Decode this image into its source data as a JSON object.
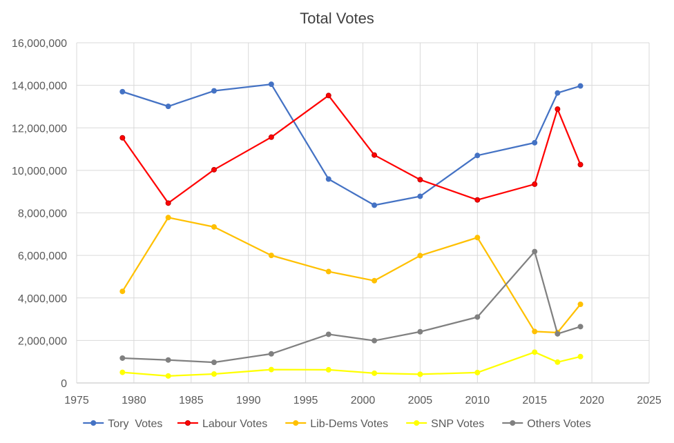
{
  "chart_data": {
    "type": "line",
    "title": "Total Votes",
    "xlabel": "",
    "ylabel": "",
    "xlim": [
      1975,
      2025
    ],
    "ylim": [
      0,
      16000000
    ],
    "x_ticks": [
      1975,
      1980,
      1985,
      1990,
      1995,
      2000,
      2005,
      2010,
      2015,
      2020,
      2025
    ],
    "y_ticks": [
      0,
      2000000,
      4000000,
      6000000,
      8000000,
      10000000,
      12000000,
      14000000,
      16000000
    ],
    "grid": true,
    "legend_position": "bottom",
    "x": [
      1979,
      1983,
      1987,
      1992,
      1997,
      2001,
      2005,
      2010,
      2015,
      2017,
      2019
    ],
    "series": [
      {
        "name": "Tory  Votes",
        "color": "#4472c4",
        "values": [
          13700000,
          13010000,
          13740000,
          14050000,
          9590000,
          8360000,
          8780000,
          10700000,
          11300000,
          13640000,
          13970000
        ]
      },
      {
        "name": "Labour Votes",
        "color": "#ff0000",
        "values": [
          11530000,
          8460000,
          10030000,
          11560000,
          13520000,
          10720000,
          9560000,
          8610000,
          9350000,
          12880000,
          10270000
        ]
      },
      {
        "name": "Lib-Dems Votes",
        "color": "#ffc000",
        "values": [
          4310000,
          7780000,
          7340000,
          6000000,
          5240000,
          4810000,
          5990000,
          6840000,
          2420000,
          2370000,
          3700000
        ]
      },
      {
        "name": "SNP Votes",
        "color": "#ffff00",
        "values": [
          500000,
          330000,
          420000,
          630000,
          620000,
          460000,
          410000,
          490000,
          1450000,
          980000,
          1240000
        ]
      },
      {
        "name": "Others Votes",
        "color": "#808080",
        "values": [
          1170000,
          1080000,
          970000,
          1370000,
          2290000,
          1990000,
          2410000,
          3100000,
          6180000,
          2310000,
          2650000
        ]
      }
    ]
  }
}
